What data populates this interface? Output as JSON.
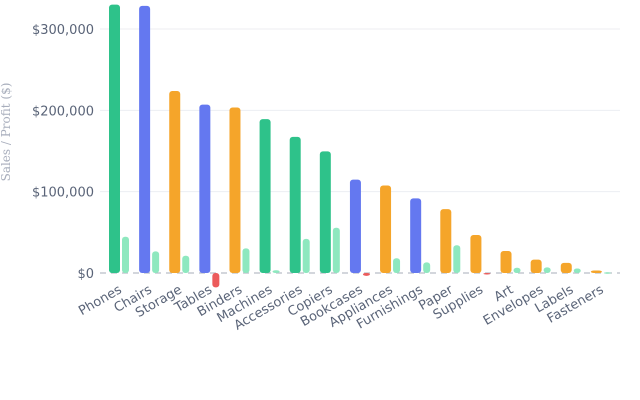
{
  "chart_data": {
    "type": "bar",
    "ylabel": "Sales / Profit ($)",
    "ylim": [
      -20000,
      330000
    ],
    "yticks": [
      0,
      100000,
      200000,
      300000
    ],
    "ytick_labels": [
      "$0",
      "$100,000",
      "$200,000",
      "$300,000"
    ],
    "grid": true,
    "categories": [
      "Phones",
      "Chairs",
      "Storage",
      "Tables",
      "Binders",
      "Machines",
      "Accessories",
      "Copiers",
      "Bookcases",
      "Appliances",
      "Furnishings",
      "Paper",
      "Supplies",
      "Art",
      "Envelopes",
      "Labels",
      "Fasteners"
    ],
    "series": [
      {
        "values": [
          330007,
          328449,
          223844,
          206966,
          203413,
          189239,
          167380,
          149528,
          114880,
          107532,
          91705,
          78479,
          46674,
          27119,
          16476,
          12486,
          3024
        ]
      },
      {
        "values": [
          44516,
          26590,
          21279,
          -17725,
          30222,
          3385,
          41937,
          55618,
          -3473,
          18138,
          13059,
          34053,
          -1189,
          6528,
          6964,
          5546,
          950
        ]
      }
    ],
    "sales_colors": [
      "#2ec28a",
      "#6478f0",
      "#f5a52a",
      "#6478f0",
      "#f5a52a",
      "#2ec28a",
      "#2ec28a",
      "#2ec28a",
      "#6478f0",
      "#f5a52a",
      "#6478f0",
      "#f5a52a",
      "#f5a52a",
      "#f5a52a",
      "#f5a52a",
      "#f5a52a",
      "#f5a52a"
    ],
    "profit_positive_color": "#8ee8bf",
    "profit_negative_color": "#ec5b5b"
  }
}
